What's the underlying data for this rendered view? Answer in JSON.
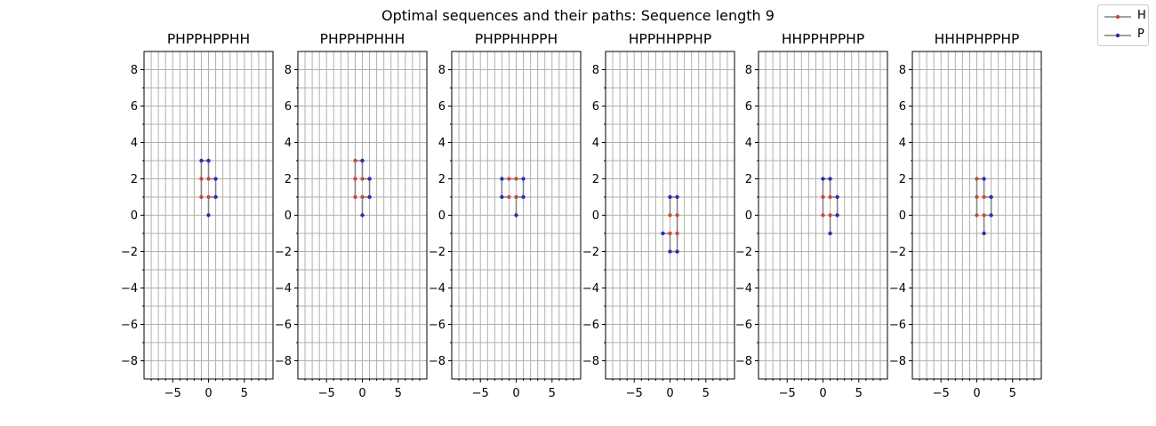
{
  "title": "Optimal sequences and their paths: Sequence length 9",
  "legend": {
    "items": [
      {
        "label": "H",
        "color": "#d0453a"
      },
      {
        "label": "P",
        "color": "#2b2bb3"
      }
    ]
  },
  "colors": {
    "path_line": "#808080",
    "grid": "#b0b0b0",
    "H": "#d0453a",
    "P": "#2b2bb3"
  },
  "chart_data": [
    {
      "type": "line",
      "title": "PHPPHPPHH",
      "sequence": "PHPPHPPHH",
      "xlim": [
        -9,
        9
      ],
      "ylim": [
        -9,
        9
      ],
      "xticks": [
        -5,
        0,
        5
      ],
      "yticks": [
        -8,
        -6,
        -4,
        -2,
        0,
        2,
        4,
        6,
        8
      ],
      "grid": true,
      "path": [
        [
          0,
          0
        ],
        [
          0,
          1
        ],
        [
          1,
          1
        ],
        [
          1,
          2
        ],
        [
          0,
          2
        ],
        [
          0,
          3
        ],
        [
          -1,
          3
        ],
        [
          -1,
          2
        ],
        [
          -1,
          1
        ]
      ]
    },
    {
      "type": "line",
      "title": "PHPPHPHHH",
      "sequence": "PHPPHPHHH",
      "xlim": [
        -9,
        9
      ],
      "ylim": [
        -9,
        9
      ],
      "xticks": [
        -5,
        0,
        5
      ],
      "yticks": [
        -8,
        -6,
        -4,
        -2,
        0,
        2,
        4,
        6,
        8
      ],
      "grid": true,
      "path": [
        [
          0,
          0
        ],
        [
          0,
          1
        ],
        [
          1,
          1
        ],
        [
          1,
          2
        ],
        [
          0,
          2
        ],
        [
          0,
          3
        ],
        [
          -1,
          3
        ],
        [
          -1,
          2
        ],
        [
          -1,
          1
        ]
      ]
    },
    {
      "type": "line",
      "title": "PHPPHHPPH",
      "sequence": "PHPPHHPPH",
      "xlim": [
        -9,
        9
      ],
      "ylim": [
        -9,
        9
      ],
      "xticks": [
        -5,
        0,
        5
      ],
      "yticks": [
        -8,
        -6,
        -4,
        -2,
        0,
        2,
        4,
        6,
        8
      ],
      "grid": true,
      "path": [
        [
          0,
          0
        ],
        [
          0,
          1
        ],
        [
          1,
          1
        ],
        [
          1,
          2
        ],
        [
          0,
          2
        ],
        [
          -1,
          2
        ],
        [
          -2,
          2
        ],
        [
          -2,
          1
        ],
        [
          -1,
          1
        ]
      ]
    },
    {
      "type": "line",
      "title": "HPPHHPPHP",
      "sequence": "HPPHHPPHP",
      "xlim": [
        -9,
        9
      ],
      "ylim": [
        -9,
        9
      ],
      "xticks": [
        -5,
        0,
        5
      ],
      "yticks": [
        -8,
        -6,
        -4,
        -2,
        0,
        2,
        4,
        6,
        8
      ],
      "grid": true,
      "path": [
        [
          0,
          0
        ],
        [
          0,
          1
        ],
        [
          1,
          1
        ],
        [
          1,
          0
        ],
        [
          1,
          -1
        ],
        [
          1,
          -2
        ],
        [
          0,
          -2
        ],
        [
          0,
          -1
        ],
        [
          -1,
          -1
        ]
      ]
    },
    {
      "type": "line",
      "title": "HHPPHPPHP",
      "sequence": "HHPPHPPHP",
      "xlim": [
        -9,
        9
      ],
      "ylim": [
        -9,
        9
      ],
      "xticks": [
        -5,
        0,
        5
      ],
      "yticks": [
        -8,
        -6,
        -4,
        -2,
        0,
        2,
        4,
        6,
        8
      ],
      "grid": true,
      "path": [
        [
          0,
          0
        ],
        [
          0,
          1
        ],
        [
          0,
          2
        ],
        [
          1,
          2
        ],
        [
          1,
          1
        ],
        [
          2,
          1
        ],
        [
          2,
          0
        ],
        [
          1,
          0
        ],
        [
          1,
          -1
        ]
      ]
    },
    {
      "type": "line",
      "title": "HHHPHPPHP",
      "sequence": "HHHPHPPHP",
      "xlim": [
        -9,
        9
      ],
      "ylim": [
        -9,
        9
      ],
      "xticks": [
        -5,
        0,
        5
      ],
      "yticks": [
        -8,
        -6,
        -4,
        -2,
        0,
        2,
        4,
        6,
        8
      ],
      "grid": true,
      "path": [
        [
          0,
          0
        ],
        [
          0,
          1
        ],
        [
          0,
          2
        ],
        [
          1,
          2
        ],
        [
          1,
          1
        ],
        [
          2,
          1
        ],
        [
          2,
          0
        ],
        [
          1,
          0
        ],
        [
          1,
          -1
        ]
      ]
    }
  ]
}
